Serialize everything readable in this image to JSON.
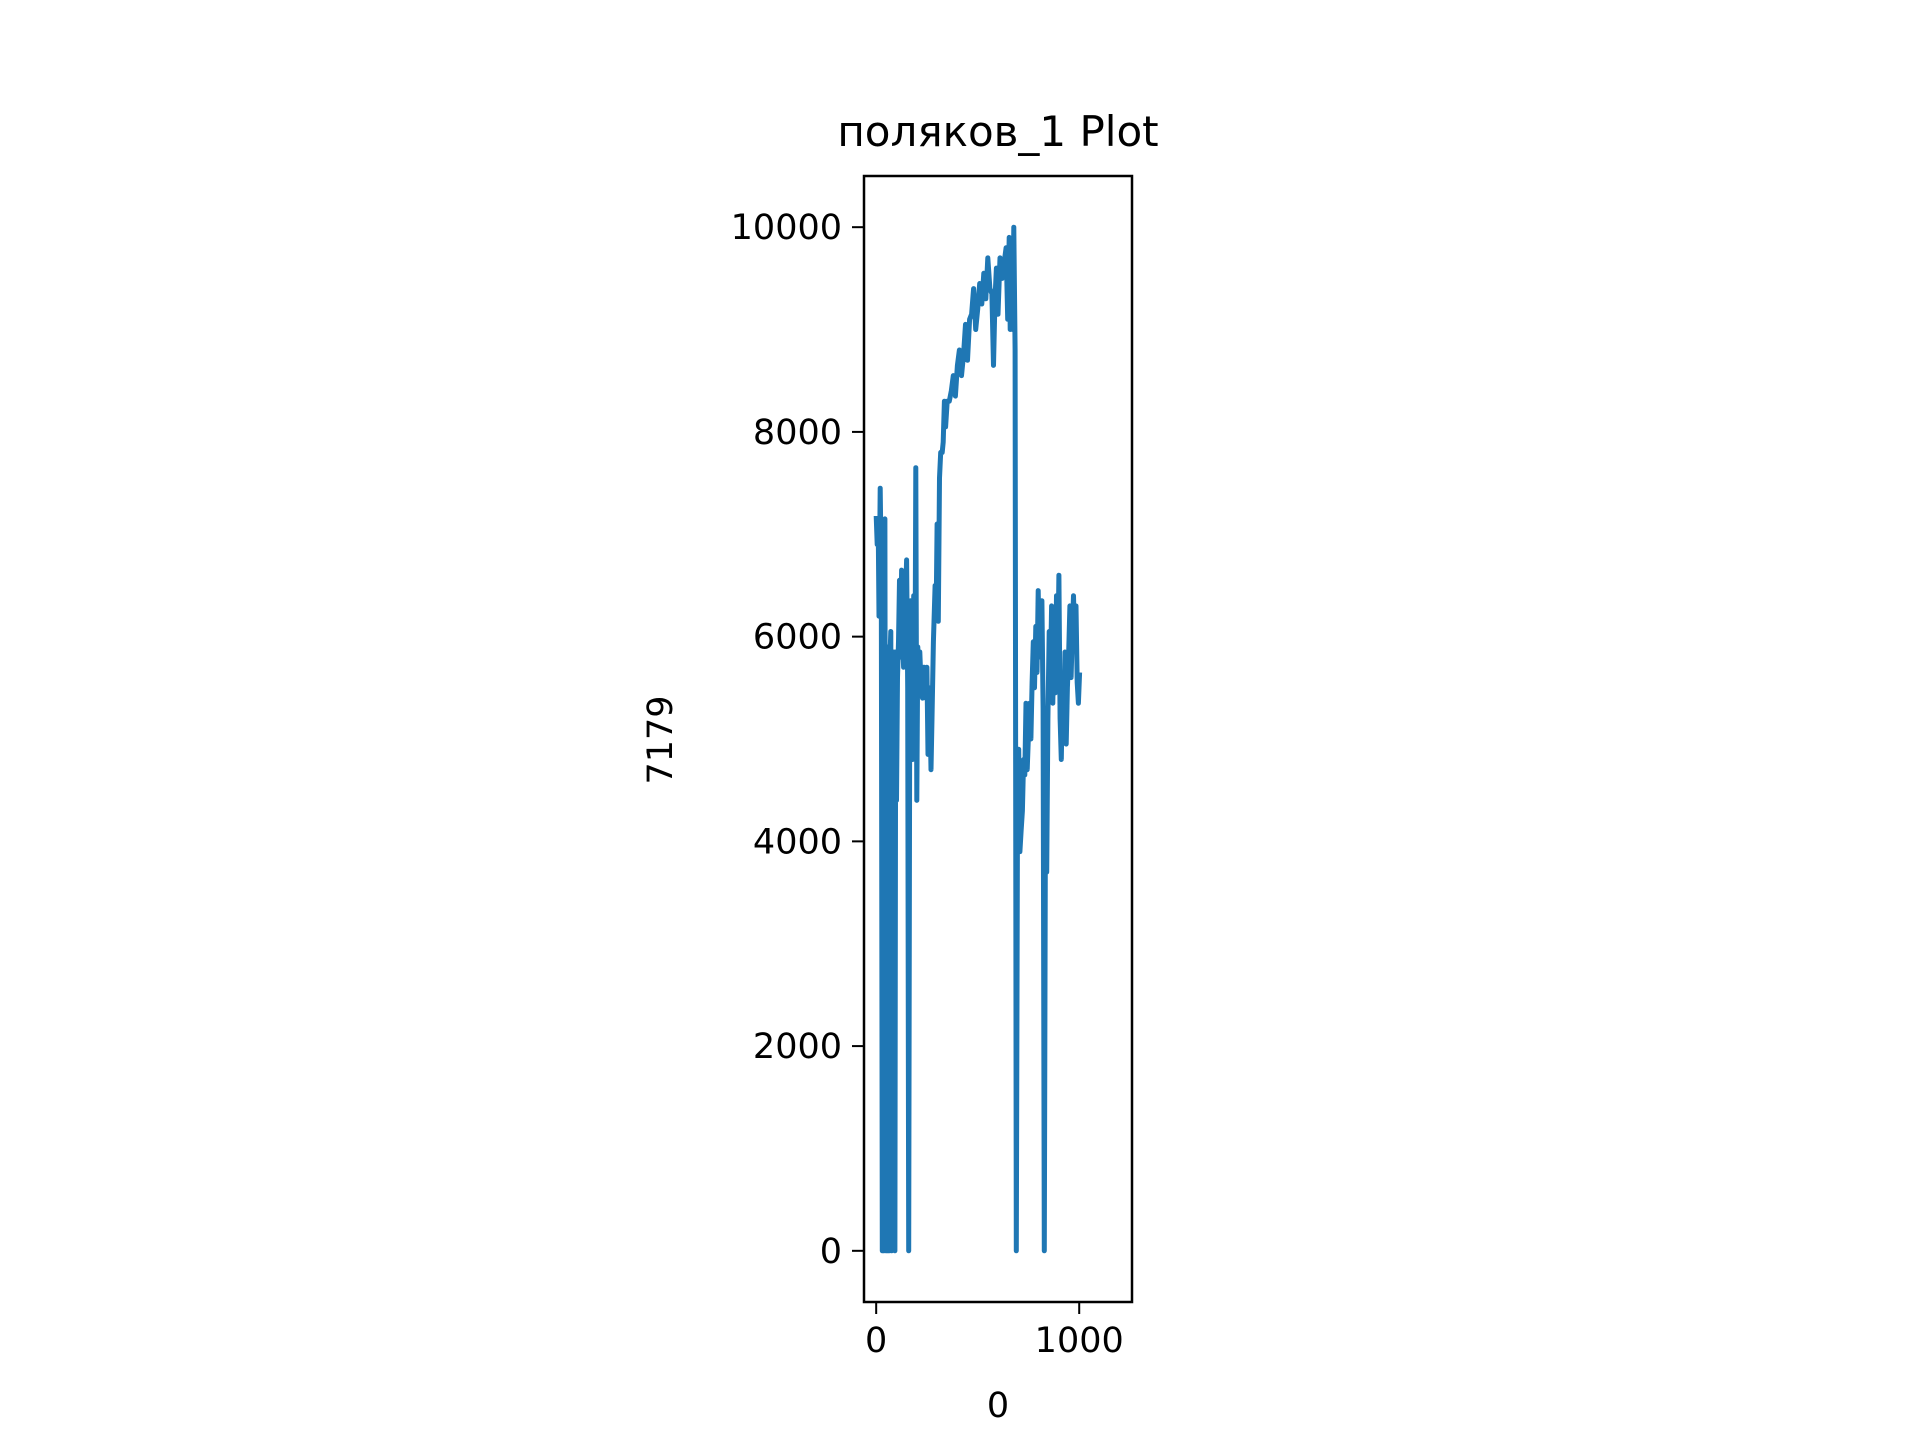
{
  "chart_data": {
    "type": "line",
    "title": "поляков_1 Plot",
    "xlabel": "0",
    "ylabel": "7179",
    "xlim": [
      -60,
      1260
    ],
    "ylim": [
      -500,
      10500
    ],
    "grid": false,
    "legend": "none",
    "x_ticks": [
      0,
      1000
    ],
    "x_tick_labels": [
      "0",
      "1000"
    ],
    "y_ticks": [
      0,
      2000,
      4000,
      6000,
      8000,
      10000
    ],
    "y_tick_labels": [
      "0",
      "2000",
      "4000",
      "6000",
      "8000",
      "10000"
    ],
    "series": [
      {
        "color": "#1f77b4",
        "points": [
          [
            0,
            7179
          ],
          [
            5,
            6900
          ],
          [
            10,
            7100
          ],
          [
            14,
            6200
          ],
          [
            20,
            7450
          ],
          [
            25,
            6600
          ],
          [
            30,
            0
          ],
          [
            34,
            5800
          ],
          [
            38,
            0
          ],
          [
            43,
            7150
          ],
          [
            48,
            0
          ],
          [
            52,
            5400
          ],
          [
            56,
            0
          ],
          [
            60,
            5900
          ],
          [
            64,
            0
          ],
          [
            68,
            5800
          ],
          [
            72,
            6050
          ],
          [
            76,
            0
          ],
          [
            80,
            5700
          ],
          [
            84,
            5150
          ],
          [
            88,
            5850
          ],
          [
            92,
            0
          ],
          [
            96,
            5850
          ],
          [
            100,
            4400
          ],
          [
            105,
            5600
          ],
          [
            110,
            5950
          ],
          [
            115,
            6550
          ],
          [
            120,
            5800
          ],
          [
            125,
            6650
          ],
          [
            130,
            6000
          ],
          [
            135,
            5700
          ],
          [
            140,
            6200
          ],
          [
            145,
            6400
          ],
          [
            150,
            6750
          ],
          [
            155,
            5500
          ],
          [
            160,
            0
          ],
          [
            165,
            5200
          ],
          [
            170,
            6350
          ],
          [
            175,
            5500
          ],
          [
            180,
            4800
          ],
          [
            185,
            6400
          ],
          [
            190,
            5000
          ],
          [
            195,
            7650
          ],
          [
            200,
            4400
          ],
          [
            205,
            5900
          ],
          [
            210,
            5600
          ],
          [
            215,
            5850
          ],
          [
            220,
            5600
          ],
          [
            228,
            5400
          ],
          [
            235,
            5700
          ],
          [
            240,
            5550
          ],
          [
            245,
            5400
          ],
          [
            250,
            5700
          ],
          [
            255,
            4850
          ],
          [
            260,
            5500
          ],
          [
            265,
            5300
          ],
          [
            270,
            4700
          ],
          [
            275,
            5200
          ],
          [
            282,
            5950
          ],
          [
            290,
            6500
          ],
          [
            295,
            6200
          ],
          [
            300,
            7100
          ],
          [
            306,
            6150
          ],
          [
            312,
            7550
          ],
          [
            318,
            7800
          ],
          [
            325,
            7800
          ],
          [
            330,
            7900
          ],
          [
            336,
            8300
          ],
          [
            342,
            8050
          ],
          [
            350,
            8300
          ],
          [
            360,
            8300
          ],
          [
            370,
            8400
          ],
          [
            380,
            8550
          ],
          [
            390,
            8350
          ],
          [
            400,
            8650
          ],
          [
            410,
            8800
          ],
          [
            420,
            8550
          ],
          [
            430,
            8750
          ],
          [
            440,
            9050
          ],
          [
            450,
            8700
          ],
          [
            460,
            9100
          ],
          [
            470,
            9150
          ],
          [
            480,
            9400
          ],
          [
            490,
            9000
          ],
          [
            500,
            9200
          ],
          [
            510,
            9450
          ],
          [
            520,
            9250
          ],
          [
            530,
            9550
          ],
          [
            540,
            9300
          ],
          [
            550,
            9700
          ],
          [
            560,
            9400
          ],
          [
            570,
            9350
          ],
          [
            578,
            8650
          ],
          [
            585,
            9300
          ],
          [
            592,
            9600
          ],
          [
            600,
            9150
          ],
          [
            610,
            9700
          ],
          [
            620,
            9500
          ],
          [
            630,
            9650
          ],
          [
            640,
            9800
          ],
          [
            648,
            9100
          ],
          [
            655,
            9900
          ],
          [
            660,
            9000
          ],
          [
            666,
            9850
          ],
          [
            672,
            9000
          ],
          [
            678,
            10000
          ],
          [
            684,
            8800
          ],
          [
            690,
            0
          ],
          [
            696,
            4300
          ],
          [
            702,
            4900
          ],
          [
            708,
            3900
          ],
          [
            714,
            4100
          ],
          [
            720,
            4300
          ],
          [
            726,
            4800
          ],
          [
            732,
            4650
          ],
          [
            738,
            5350
          ],
          [
            744,
            4700
          ],
          [
            750,
            5050
          ],
          [
            756,
            5350
          ],
          [
            762,
            5000
          ],
          [
            768,
            5550
          ],
          [
            774,
            5950
          ],
          [
            780,
            5500
          ],
          [
            786,
            6100
          ],
          [
            792,
            5650
          ],
          [
            798,
            6450
          ],
          [
            804,
            5800
          ],
          [
            810,
            6050
          ],
          [
            816,
            6350
          ],
          [
            822,
            5300
          ],
          [
            828,
            0
          ],
          [
            834,
            4500
          ],
          [
            840,
            3700
          ],
          [
            846,
            5200
          ],
          [
            852,
            6050
          ],
          [
            858,
            5600
          ],
          [
            864,
            6300
          ],
          [
            870,
            5350
          ],
          [
            876,
            6150
          ],
          [
            882,
            5450
          ],
          [
            888,
            6400
          ],
          [
            894,
            5700
          ],
          [
            900,
            6600
          ],
          [
            906,
            5200
          ],
          [
            912,
            4800
          ],
          [
            918,
            5500
          ],
          [
            924,
            5100
          ],
          [
            930,
            5850
          ],
          [
            936,
            4950
          ],
          [
            942,
            5500
          ],
          [
            948,
            5850
          ],
          [
            954,
            6300
          ],
          [
            960,
            5600
          ],
          [
            966,
            6050
          ],
          [
            972,
            6400
          ],
          [
            978,
            5950
          ],
          [
            984,
            6300
          ],
          [
            990,
            5550
          ],
          [
            996,
            5350
          ],
          [
            1002,
            5650
          ]
        ]
      }
    ]
  }
}
